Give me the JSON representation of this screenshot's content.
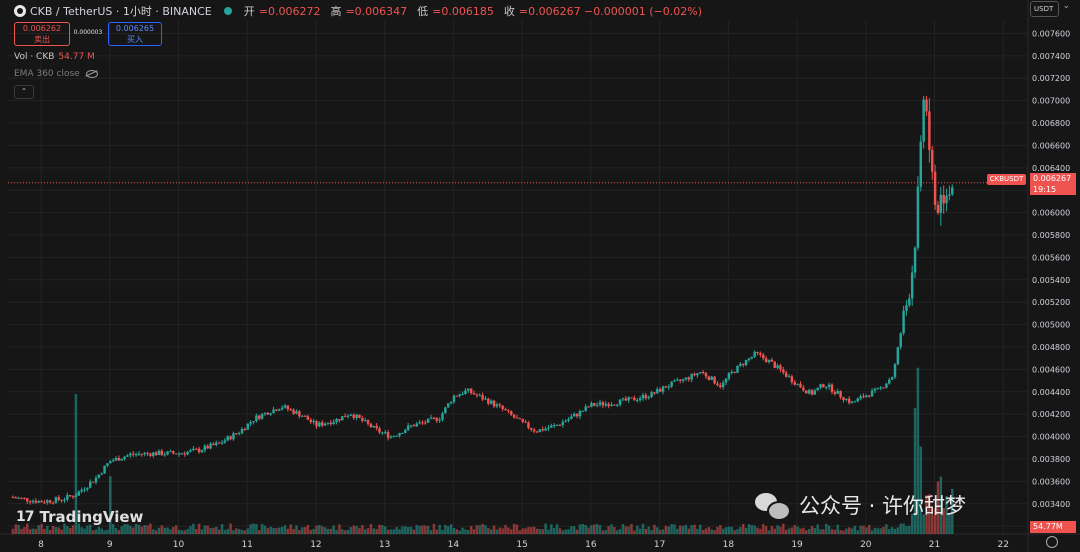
{
  "header": {
    "symbol": "CKB / TetherUS · 1小时 · BINANCE",
    "open_label": "开",
    "open_value": "=0.006272",
    "high_label": "高",
    "high_value": "=0.006347",
    "low_label": "低",
    "low_value": "=0.006185",
    "close_label": "收",
    "close_value": "=0.006267 −0.000001 (−0.02%)"
  },
  "trade": {
    "sell_price": "0.006262",
    "sell_label": "卖出",
    "spread": "0.000003",
    "buy_price": "0.006265",
    "buy_label": "买入"
  },
  "indicators": {
    "vol_label": "Vol · CKB",
    "vol_value": "54.77 M",
    "ema_label": "EMA 360 close"
  },
  "currency_select": "USDT",
  "price_tag": {
    "symbol": "CKBUSDT",
    "price": "0.006267",
    "countdown": "19:15"
  },
  "volume_tag": "54.77M",
  "brand": "TradingView",
  "watermark": "公众号 · 许你甜梦",
  "colors": {
    "up": "#26a69a",
    "down": "#ef5350",
    "background": "#161616"
  },
  "chart_data": {
    "type": "candlestick",
    "timeframe": "1h",
    "x_tick_labels": [
      "8",
      "9",
      "10",
      "11",
      "12",
      "13",
      "14",
      "15",
      "16",
      "17",
      "18",
      "19",
      "20",
      "21",
      "22"
    ],
    "y_tick_labels": [
      "0.003200",
      "0.003400",
      "0.003600",
      "0.003800",
      "0.004000",
      "0.004200",
      "0.004400",
      "0.004600",
      "0.004800",
      "0.005000",
      "0.005200",
      "0.005400",
      "0.005600",
      "0.005800",
      "0.006000",
      "0.006200",
      "0.006400",
      "0.006600",
      "0.006800",
      "0.007000",
      "0.007200",
      "0.007400",
      "0.007600"
    ],
    "ylim": [
      0.00313,
      0.00772
    ],
    "x_range_days": [
      7.52,
      22.36
    ],
    "current_price": 0.006267,
    "price_path": [
      [
        7.55,
        0.00346
      ],
      [
        8.0,
        0.00342
      ],
      [
        8.3,
        0.00344
      ],
      [
        8.5,
        0.00348
      ],
      [
        8.8,
        0.00363
      ],
      [
        9.0,
        0.00378
      ],
      [
        9.3,
        0.00384
      ],
      [
        9.6,
        0.00385
      ],
      [
        10.0,
        0.00385
      ],
      [
        10.3,
        0.00388
      ],
      [
        10.6,
        0.00394
      ],
      [
        10.9,
        0.00405
      ],
      [
        11.1,
        0.00416
      ],
      [
        11.3,
        0.00422
      ],
      [
        11.5,
        0.00427
      ],
      [
        11.8,
        0.00419
      ],
      [
        12.0,
        0.0041
      ],
      [
        12.3,
        0.00415
      ],
      [
        12.5,
        0.00421
      ],
      [
        12.7,
        0.00413
      ],
      [
        12.9,
        0.00405
      ],
      [
        13.1,
        0.004
      ],
      [
        13.4,
        0.0041
      ],
      [
        13.6,
        0.00413
      ],
      [
        13.8,
        0.00417
      ],
      [
        14.0,
        0.00436
      ],
      [
        14.2,
        0.00441
      ],
      [
        14.5,
        0.00432
      ],
      [
        14.7,
        0.00425
      ],
      [
        15.0,
        0.00412
      ],
      [
        15.2,
        0.00405
      ],
      [
        15.5,
        0.0041
      ],
      [
        15.8,
        0.0042
      ],
      [
        16.0,
        0.00428
      ],
      [
        16.3,
        0.0043
      ],
      [
        16.6,
        0.00433
      ],
      [
        16.9,
        0.00438
      ],
      [
        17.1,
        0.00445
      ],
      [
        17.4,
        0.00452
      ],
      [
        17.6,
        0.00458
      ],
      [
        17.9,
        0.00445
      ],
      [
        18.0,
        0.00454
      ],
      [
        18.2,
        0.00465
      ],
      [
        18.4,
        0.00474
      ],
      [
        18.6,
        0.00467
      ],
      [
        18.8,
        0.00457
      ],
      [
        19.0,
        0.00447
      ],
      [
        19.2,
        0.00438
      ],
      [
        19.4,
        0.00447
      ],
      [
        19.6,
        0.00438
      ],
      [
        19.8,
        0.0043
      ],
      [
        20.0,
        0.00437
      ],
      [
        20.2,
        0.00442
      ],
      [
        20.4,
        0.00455
      ],
      [
        20.5,
        0.0049
      ],
      [
        20.6,
        0.0052
      ],
      [
        20.7,
        0.0056
      ],
      [
        20.75,
        0.0061
      ],
      [
        20.8,
        0.0066
      ],
      [
        20.85,
        0.0072
      ],
      [
        20.9,
        0.0068
      ],
      [
        20.95,
        0.0064
      ],
      [
        21.0,
        0.0061
      ],
      [
        21.05,
        0.006
      ],
      [
        21.1,
        0.0063
      ],
      [
        21.15,
        0.0061
      ],
      [
        21.2,
        0.00626
      ],
      [
        21.25,
        0.006267
      ]
    ],
    "volume_spikes": [
      [
        8.5,
        0.8
      ],
      [
        9.0,
        0.33
      ],
      [
        20.7,
        0.72
      ],
      [
        20.75,
        0.95
      ],
      [
        20.8,
        0.5
      ],
      [
        21.05,
        0.3
      ]
    ]
  }
}
